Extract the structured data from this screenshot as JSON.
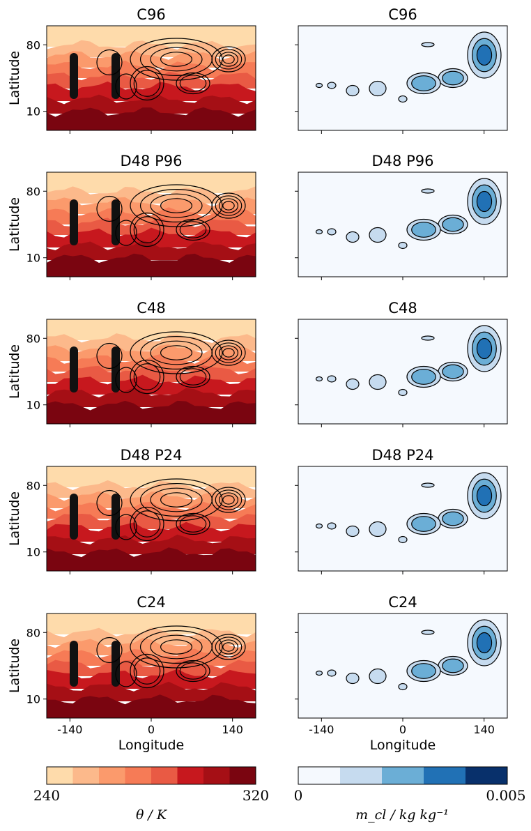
{
  "chart_data": {
    "type": "contour",
    "rows": [
      "C96",
      "D48 P96",
      "C48",
      "D48 P24",
      "C24"
    ],
    "columns": [
      {
        "variable": "theta",
        "colormap": "reds"
      },
      {
        "variable": "m_cl",
        "colormap": "blues"
      }
    ],
    "xlabel": "Longitude",
    "ylabel": "Latitude",
    "xticks": [
      "-140",
      "0",
      "140"
    ],
    "yticks": [
      "80",
      "10"
    ],
    "xlim": [
      -180,
      180
    ],
    "ylim": [
      -10,
      100
    ],
    "theta_colorbar": {
      "min_label": "240",
      "max_label": "320",
      "label": "θ / K",
      "colors": [
        "#fedbab",
        "#fcb98b",
        "#fb9a6c",
        "#f67b56",
        "#e95a44",
        "#c7181e",
        "#a50f15",
        "#7a0510"
      ]
    },
    "mcl_colorbar": {
      "min_label": "0",
      "max_label": "0.005",
      "label": "m_cl / kg kg⁻¹",
      "colors": [
        "#f5f9fe",
        "#c6dbef",
        "#6baed6",
        "#2171b5",
        "#08306b"
      ]
    }
  }
}
